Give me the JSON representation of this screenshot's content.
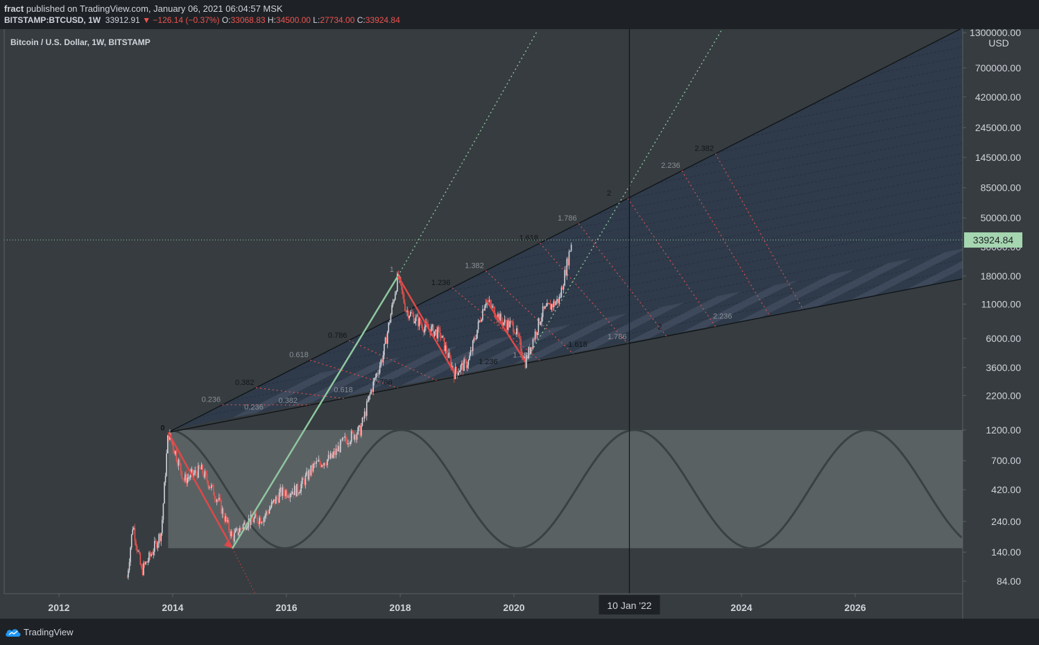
{
  "header": {
    "publisher": "fract",
    "published_text": "published on TradingView.com, January 06, 2021 06:04:57 MSK",
    "symbol": "BITSTAMP:BTCUSD, 1W",
    "last": "33912.91",
    "change": "▼ −126.14 (−0.37%)",
    "o_label": "O:",
    "o_value": "33068.83",
    "h_label": "H:",
    "h_value": "34500.00",
    "l_label": "L:",
    "l_value": "27734.00",
    "c_label": "C:",
    "c_value": "33924.84"
  },
  "chart_title": "Bitcoin / U.S. Dollar, 1W, BITSTAMP",
  "price_label": "33924.84",
  "crosshair_date": "10 Jan '22",
  "footer": {
    "brand": "TradingView"
  },
  "colors": {
    "background": "#363c3f",
    "bar_bg": "#1e2226",
    "up": "#d1d4dc",
    "down": "#ef5350",
    "green_arrow": "#8fc7a0",
    "price_tag": "#a5d6b0"
  },
  "chart_data": {
    "type": "candlestick",
    "scale": "log",
    "title": "Bitcoin / U.S. Dollar, 1W, BITSTAMP",
    "y_unit": "USD",
    "y_ticks": [
      "1300000.00",
      "700000.00",
      "420000.00",
      "245000.00",
      "145000.00",
      "85000.00",
      "50000.00",
      "30000.00",
      "18000.00",
      "11000.00",
      "6000.00",
      "3600.00",
      "2200.00",
      "1200.00",
      "700.00",
      "420.00",
      "240.00",
      "140.00",
      "84.00"
    ],
    "x_ticks": [
      "2012",
      "2014",
      "2016",
      "2018",
      "2020",
      "2024",
      "2026"
    ],
    "last_price": 33924.84,
    "price_path": [
      [
        2013.2,
        90
      ],
      [
        2013.3,
        230
      ],
      [
        2013.45,
        100
      ],
      [
        2013.6,
        130
      ],
      [
        2013.8,
        200
      ],
      [
        2013.92,
        1150
      ],
      [
        2014.05,
        800
      ],
      [
        2014.2,
        500
      ],
      [
        2014.5,
        600
      ],
      [
        2014.8,
        350
      ],
      [
        2015.05,
        180
      ],
      [
        2015.3,
        240
      ],
      [
        2015.6,
        260
      ],
      [
        2015.9,
        400
      ],
      [
        2016.2,
        420
      ],
      [
        2016.5,
        650
      ],
      [
        2016.8,
        740
      ],
      [
        2017.0,
        980
      ],
      [
        2017.3,
        1200
      ],
      [
        2017.5,
        2500
      ],
      [
        2017.7,
        4500
      ],
      [
        2017.96,
        18000
      ],
      [
        2018.1,
        10000
      ],
      [
        2018.4,
        7500
      ],
      [
        2018.7,
        6500
      ],
      [
        2018.95,
        3300
      ],
      [
        2019.2,
        4000
      ],
      [
        2019.5,
        12000
      ],
      [
        2019.8,
        8000
      ],
      [
        2020.0,
        7500
      ],
      [
        2020.2,
        4000
      ],
      [
        2020.5,
        9500
      ],
      [
        2020.8,
        12000
      ],
      [
        2021.02,
        34000
      ]
    ],
    "annotations": {
      "fan_origin": {
        "x": 2013.92,
        "y": 1150,
        "label": "0"
      },
      "fan_top_label": "1",
      "fan_upper_levels": [
        "0.236",
        "0.382",
        "0.618",
        "0.786",
        "1.236",
        "1.382",
        "1.618",
        "1.786",
        "2",
        "2.236",
        "2.382"
      ],
      "fan_lower_levels": [
        "0.236",
        "0.382",
        "0.618",
        "0.786",
        "1.236",
        "1.382",
        "1.618",
        "1.786",
        "2",
        "2.236"
      ],
      "cycle": {
        "range_low": 150,
        "range_high": 1200,
        "period_years": 4.1
      },
      "crosshair_x": 2022.03
    }
  }
}
